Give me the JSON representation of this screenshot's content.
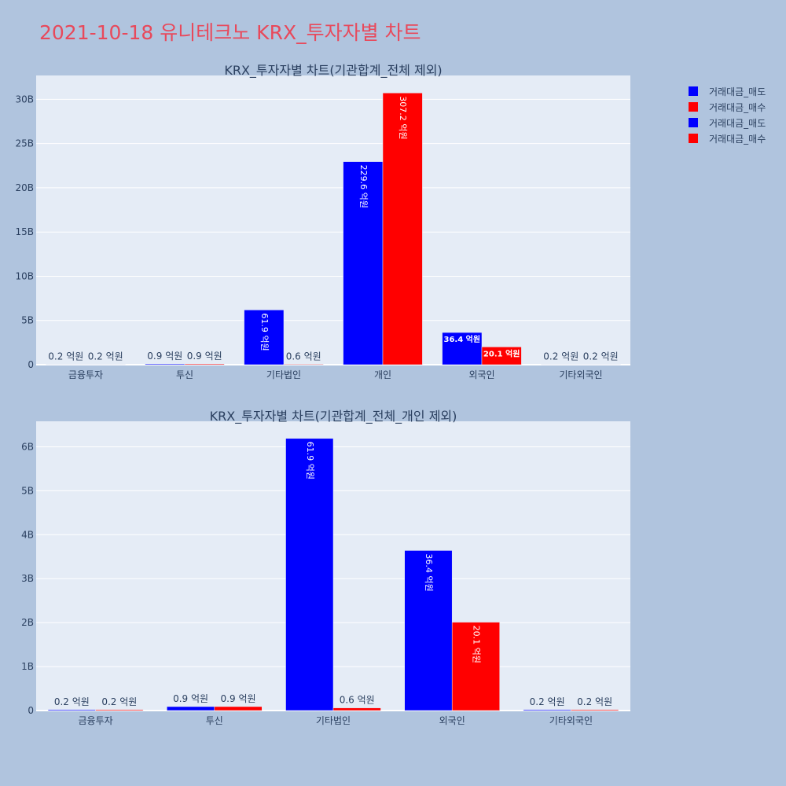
{
  "title": "2021-10-18 유니테크노 KRX_투자자별 차트",
  "legend": [
    {
      "name": "거래대금_매도",
      "color": "#0000ff"
    },
    {
      "name": "거래대금_매수",
      "color": "#ff0000"
    },
    {
      "name": "거래대금_매도",
      "color": "#0000ff"
    },
    {
      "name": "거래대금_매수",
      "color": "#ff0000"
    }
  ],
  "chart_data": [
    {
      "type": "bar",
      "title": "KRX_투자자별 차트(기관합계_전체 제외)",
      "categories": [
        "금융투자",
        "투신",
        "기타법인",
        "개인",
        "외국인",
        "기타외국인"
      ],
      "y_ticks": [
        "0",
        "5B",
        "10B",
        "15B",
        "20B",
        "25B",
        "30B"
      ],
      "ylim": [
        0,
        32700000000
      ],
      "series": [
        {
          "name": "거래대금_매도",
          "color": "#0000ff",
          "values": [
            20000000,
            90000000,
            6190000000,
            22960000000,
            3640000000,
            20000000
          ],
          "labels": [
            "0.2 억원",
            "0.9 억원",
            "61.9 억원",
            "229.6 억원",
            "36.4 억원",
            "0.2 억원"
          ]
        },
        {
          "name": "거래대금_매수",
          "color": "#ff0000",
          "values": [
            20000000,
            90000000,
            60000000,
            30720000000,
            2010000000,
            20000000
          ],
          "labels": [
            "0.2 억원",
            "0.9 억원",
            "0.6 억원",
            "307.2 억원",
            "20.1 억원",
            "0.2 억원"
          ]
        }
      ]
    },
    {
      "type": "bar",
      "title": "KRX_투자자별 차트(기관합계_전체_개인 제외)",
      "categories": [
        "금융투자",
        "투신",
        "기타법인",
        "외국인",
        "기타외국인"
      ],
      "y_ticks": [
        "0",
        "1B",
        "2B",
        "3B",
        "4B",
        "5B",
        "6B"
      ],
      "ylim": [
        0,
        6580000000
      ],
      "series": [
        {
          "name": "거래대금_매도",
          "color": "#0000ff",
          "values": [
            20000000,
            90000000,
            6190000000,
            3640000000,
            20000000
          ],
          "labels": [
            "0.2 억원",
            "0.9 억원",
            "61.9 억원",
            "36.4 억원",
            "0.2 억원"
          ]
        },
        {
          "name": "거래대금_매수",
          "color": "#ff0000",
          "values": [
            20000000,
            90000000,
            60000000,
            2010000000,
            20000000
          ],
          "labels": [
            "0.2 억원",
            "0.9 억원",
            "0.6 억원",
            "20.1 억원",
            "0.2 억원"
          ]
        }
      ]
    }
  ]
}
